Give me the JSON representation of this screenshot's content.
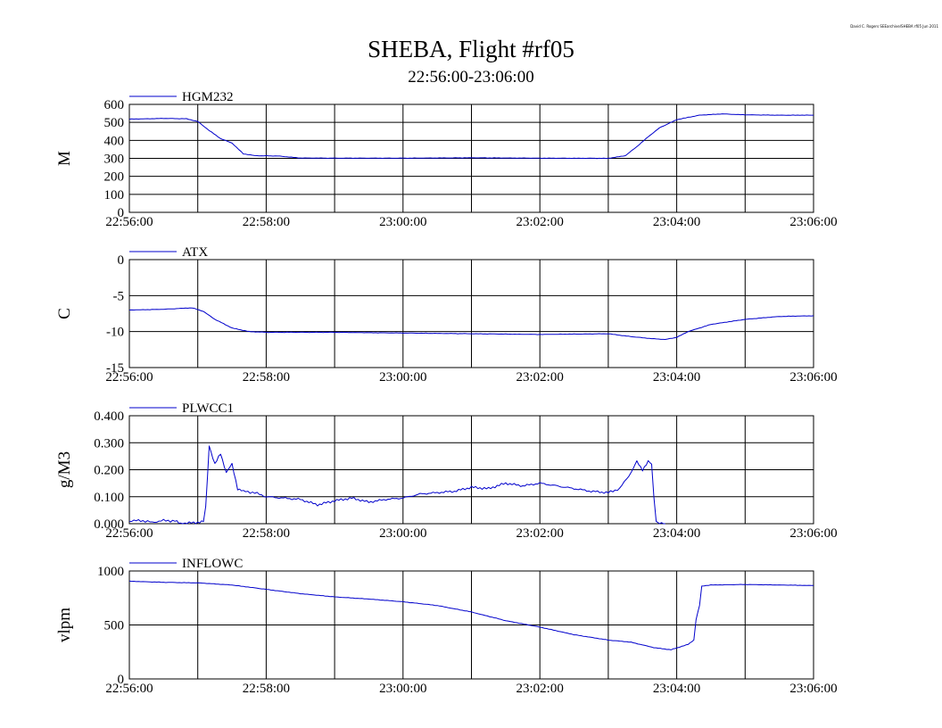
{
  "credit": "David C. Rogers SEEarchive/SHEBA rf05 Jun 2011",
  "title": "SHEBA, Flight #rf05",
  "subtitle": "22:56:00-23:06:00",
  "colors": {
    "series": "#0000cc",
    "axes": "#000000",
    "background": "#ffffff"
  },
  "chart_data": [
    {
      "type": "line",
      "ylabel": "M",
      "legend": "HGM232",
      "ylim": [
        0,
        600
      ],
      "yticks": [
        "0",
        "100",
        "200",
        "300",
        "400",
        "500",
        "600"
      ],
      "xticks": [
        "22:56:00",
        "22:58:00",
        "23:00:00",
        "23:02:00",
        "23:04:00",
        "23:06:00"
      ],
      "grid": true,
      "series": [
        {
          "name": "HGM232",
          "t": [
            "22:56:00",
            "22:56:30",
            "22:56:50",
            "22:57:00",
            "22:57:10",
            "22:57:20",
            "22:57:30",
            "22:57:40",
            "22:57:50",
            "22:58:10",
            "22:58:30",
            "22:59:00",
            "23:00:00",
            "23:01:00",
            "23:02:00",
            "23:03:00",
            "23:03:15",
            "23:03:25",
            "23:03:35",
            "23:03:45",
            "23:04:00",
            "23:04:20",
            "23:04:40",
            "23:05:00",
            "23:05:30",
            "23:06:00"
          ],
          "values": [
            518,
            522,
            520,
            505,
            455,
            410,
            385,
            325,
            315,
            313,
            302,
            301,
            301,
            303,
            301,
            300,
            315,
            365,
            420,
            470,
            515,
            540,
            547,
            542,
            540,
            540
          ]
        }
      ]
    },
    {
      "type": "line",
      "ylabel": "C",
      "legend": "ATX",
      "ylim": [
        -15,
        0
      ],
      "yticks": [
        "-15",
        "-10",
        "-5",
        "0"
      ],
      "xticks": [
        "22:56:00",
        "22:58:00",
        "23:00:00",
        "23:02:00",
        "23:04:00",
        "23:06:00"
      ],
      "grid": true,
      "series": [
        {
          "name": "ATX",
          "t": [
            "22:56:00",
            "22:56:30",
            "22:56:55",
            "22:57:05",
            "22:57:15",
            "22:57:30",
            "22:57:45",
            "22:58:00",
            "22:59:00",
            "23:00:00",
            "23:01:00",
            "23:02:00",
            "23:03:00",
            "23:03:20",
            "23:03:40",
            "23:03:50",
            "23:04:00",
            "23:04:10",
            "23:04:30",
            "23:05:00",
            "23:05:30",
            "23:06:00"
          ],
          "values": [
            -7.0,
            -6.9,
            -6.7,
            -7.2,
            -8.3,
            -9.5,
            -10.0,
            -10.1,
            -10.1,
            -10.2,
            -10.3,
            -10.4,
            -10.3,
            -10.7,
            -11.0,
            -11.1,
            -10.8,
            -10.0,
            -9.0,
            -8.3,
            -7.9,
            -7.8
          ]
        }
      ]
    },
    {
      "type": "line",
      "ylabel": "g/M3",
      "legend": "PLWCC1",
      "ylim": [
        0,
        0.4
      ],
      "yticks": [
        "0.000",
        "0.100",
        "0.200",
        "0.300",
        "0.400"
      ],
      "xticks": [
        "22:56:00",
        "22:58:00",
        "23:00:00",
        "23:02:00",
        "23:04:00",
        "23:06:00"
      ],
      "grid": true,
      "series": [
        {
          "name": "PLWCC1",
          "t": [
            "22:56:00",
            "22:56:10",
            "22:56:20",
            "22:56:30",
            "22:56:40",
            "22:56:45",
            "22:57:00",
            "22:57:05",
            "22:57:07",
            "22:57:10",
            "22:57:15",
            "22:57:20",
            "22:57:25",
            "22:57:30",
            "22:57:35",
            "22:57:40",
            "22:57:50",
            "22:58:00",
            "22:58:15",
            "22:58:30",
            "22:58:45",
            "22:59:00",
            "22:59:15",
            "22:59:30",
            "22:59:45",
            "23:00:00",
            "23:00:15",
            "23:00:30",
            "23:00:45",
            "23:01:00",
            "23:01:15",
            "23:01:30",
            "23:01:45",
            "23:02:00",
            "23:02:15",
            "23:02:30",
            "23:02:45",
            "23:03:00",
            "23:03:10",
            "23:03:20",
            "23:03:25",
            "23:03:30",
            "23:03:35",
            "23:03:38",
            "23:03:40",
            "23:03:42",
            "23:03:45",
            "23:03:50"
          ],
          "values": [
            0.01,
            0.012,
            0.005,
            0.012,
            0.01,
            0.0,
            0.005,
            0.008,
            0.06,
            0.29,
            0.22,
            0.26,
            0.19,
            0.22,
            0.13,
            0.12,
            0.115,
            0.1,
            0.095,
            0.09,
            0.07,
            0.085,
            0.095,
            0.08,
            0.09,
            0.095,
            0.11,
            0.115,
            0.12,
            0.135,
            0.13,
            0.15,
            0.14,
            0.15,
            0.14,
            0.13,
            0.12,
            0.115,
            0.13,
            0.19,
            0.23,
            0.2,
            0.23,
            0.22,
            0.1,
            0.01,
            0.0,
            0.0
          ]
        }
      ]
    },
    {
      "type": "line",
      "ylabel": "vlpm",
      "legend": "INFLOWC",
      "ylim": [
        0,
        1000
      ],
      "yticks": [
        "0",
        "500",
        "1000"
      ],
      "xticks": [
        "22:56:00",
        "22:58:00",
        "23:00:00",
        "23:02:00",
        "23:04:00",
        "23:06:00"
      ],
      "grid": true,
      "series": [
        {
          "name": "INFLOWC",
          "t": [
            "22:56:00",
            "22:56:30",
            "22:57:00",
            "22:57:30",
            "22:58:00",
            "22:58:30",
            "22:59:00",
            "22:59:30",
            "23:00:00",
            "23:00:30",
            "23:01:00",
            "23:01:30",
            "23:02:00",
            "23:02:30",
            "23:03:00",
            "23:03:20",
            "23:03:40",
            "23:03:55",
            "23:04:10",
            "23:04:15",
            "23:04:17",
            "23:04:20",
            "23:04:22",
            "23:04:30",
            "23:05:00",
            "23:05:30",
            "23:06:00"
          ],
          "values": [
            905,
            895,
            890,
            870,
            830,
            790,
            760,
            740,
            715,
            680,
            620,
            540,
            480,
            410,
            360,
            340,
            290,
            270,
            320,
            360,
            550,
            680,
            860,
            870,
            875,
            870,
            865
          ]
        }
      ]
    }
  ]
}
